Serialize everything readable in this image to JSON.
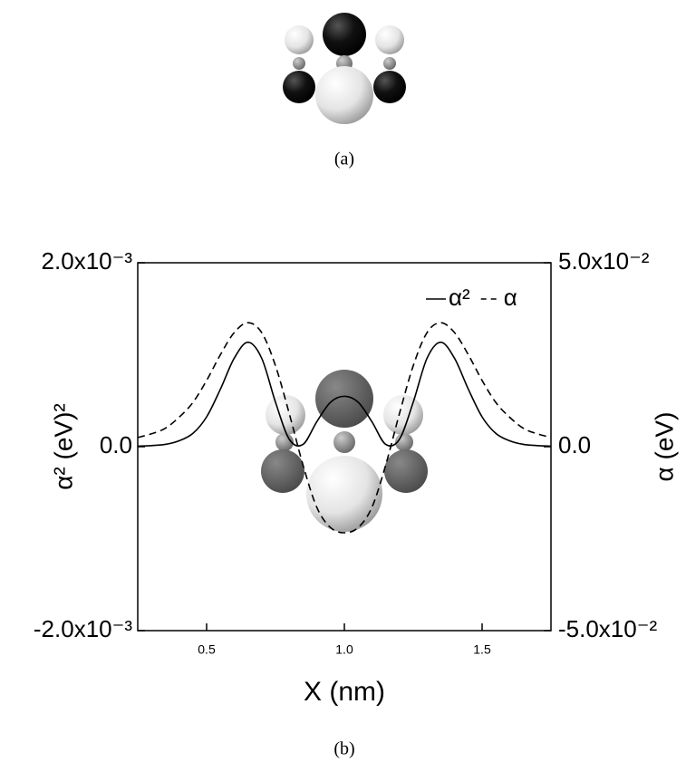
{
  "captions": {
    "a": "(a)",
    "b": "(b)"
  },
  "chart_data": {
    "type": "line",
    "xlabel": "X (nm)",
    "ylabel": "α² (eV)²",
    "y2label": "α (eV)",
    "x": [
      0.25,
      0.3,
      0.35,
      0.4,
      0.45,
      0.5,
      0.55,
      0.6,
      0.65,
      0.7,
      0.75,
      0.8,
      0.85,
      0.9,
      0.95,
      1.0,
      1.05,
      1.1,
      1.15,
      1.2,
      1.25,
      1.3,
      1.35,
      1.4,
      1.45,
      1.5,
      1.55,
      1.6,
      1.65,
      1.7,
      1.75
    ],
    "series": [
      {
        "name": "α²",
        "color": "#000000",
        "dash": "solid",
        "values": [
          6e-06,
          1.2e-05,
          2.5e-05,
          6.4e-05,
          0.000144,
          0.000324,
          0.000625,
          0.000961,
          0.001136,
          0.000961,
          0.000484,
          8.1e-05,
          2.5e-05,
          0.000272,
          0.000484,
          0.000548,
          0.000484,
          0.000272,
          2.5e-05,
          8.1e-05,
          0.000484,
          0.000961,
          0.001136,
          0.000961,
          0.000625,
          0.000324,
          0.000144,
          6.4e-05,
          2.5e-05,
          1.2e-05,
          6e-06
        ]
      },
      {
        "name": "α",
        "color": "#000000",
        "dash": "dashed",
        "axis": "y2",
        "values": [
          0.0025,
          0.0035,
          0.005,
          0.008,
          0.012,
          0.018,
          0.025,
          0.031,
          0.0337,
          0.031,
          0.022,
          0.009,
          -0.005,
          -0.0165,
          -0.022,
          -0.0234,
          -0.022,
          -0.0165,
          -0.005,
          0.009,
          0.022,
          0.031,
          0.0337,
          0.031,
          0.025,
          0.018,
          0.012,
          0.008,
          0.005,
          0.0035,
          0.0025
        ]
      }
    ],
    "xlim": [
      0.25,
      1.75
    ],
    "xticks": [
      0.5,
      {
        "value": 1,
        "label": "1.0"
      },
      1.5
    ],
    "ylim": [
      -0.002,
      0.002
    ],
    "yticks": [
      {
        "value": -0.002,
        "label": "-2.0x10⁻³"
      },
      {
        "value": 0,
        "label": "0.0"
      },
      {
        "value": 0.002,
        "label": "2.0x10⁻³"
      }
    ],
    "y2lim": [
      -0.05,
      0.05
    ],
    "y2ticks": [
      {
        "value": -0.05,
        "label": "-5.0x10⁻²"
      },
      {
        "value": 0,
        "label": "0.0"
      },
      {
        "value": 0.05,
        "label": "5.0x10⁻²"
      }
    ],
    "legend": "upper right",
    "grid": false
  }
}
